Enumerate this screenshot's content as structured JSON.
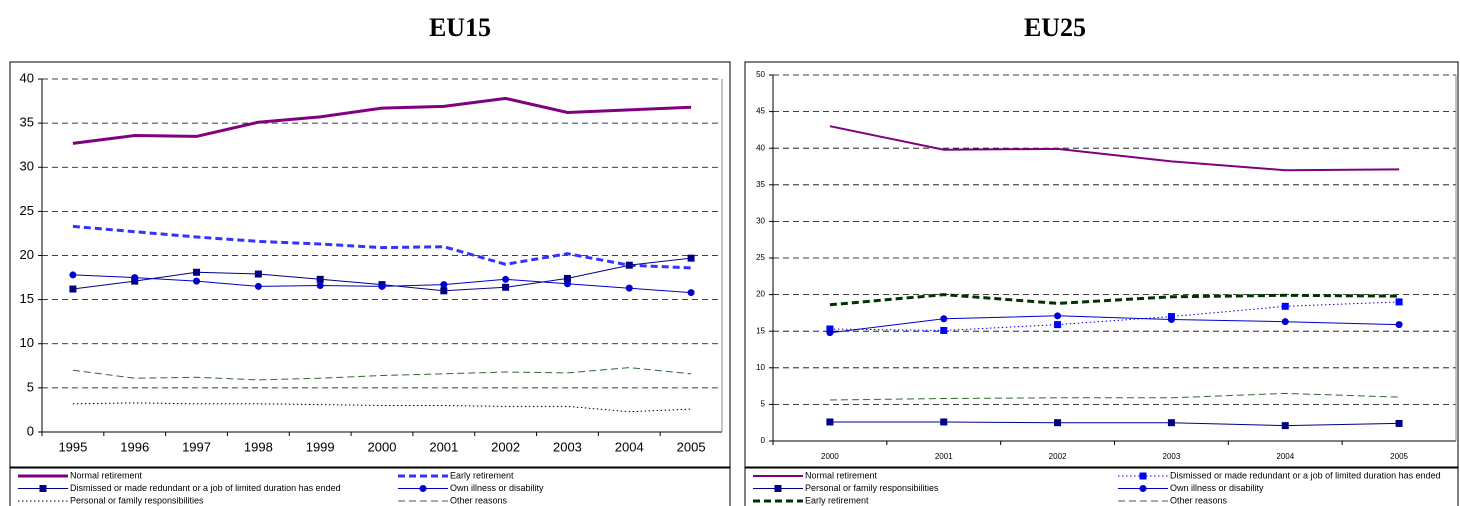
{
  "chart_data": [
    {
      "type": "line",
      "title": "EU15",
      "categories": [
        "1995",
        "1996",
        "1997",
        "1998",
        "1999",
        "2000",
        "2001",
        "2002",
        "2003",
        "2004",
        "2005"
      ],
      "ylim": [
        0,
        40
      ],
      "yticks": [
        0,
        5,
        10,
        15,
        20,
        25,
        30,
        35,
        40
      ],
      "grid": true,
      "series": [
        {
          "name": "Normal retirement",
          "color": "#800080",
          "dash": "solid",
          "line_width": 3,
          "marker": "none",
          "values": [
            32.7,
            33.6,
            33.5,
            35.1,
            35.7,
            36.7,
            36.9,
            37.8,
            36.2,
            36.5,
            36.8
          ]
        },
        {
          "name": "Early retirement",
          "color": "#3333ff",
          "dash": "dash",
          "line_width": 3,
          "marker": "none",
          "values": [
            23.3,
            22.7,
            22.1,
            21.6,
            21.3,
            20.9,
            21.0,
            19.0,
            20.2,
            18.9,
            18.6
          ]
        },
        {
          "name": "Dismissed or made redundant or a job of limited duration has ended",
          "color": "#000080",
          "dash": "solid",
          "line_width": 1,
          "marker": "square",
          "values": [
            16.2,
            17.1,
            18.1,
            17.9,
            17.3,
            16.7,
            16.0,
            16.4,
            17.4,
            18.9,
            19.7
          ]
        },
        {
          "name": "Own illness or disability",
          "color": "#0000cc",
          "dash": "solid",
          "line_width": 1,
          "marker": "circle",
          "values": [
            17.8,
            17.5,
            17.1,
            16.5,
            16.6,
            16.5,
            16.7,
            17.3,
            16.8,
            16.3,
            15.8
          ]
        },
        {
          "name": "Personal or family responsibilities",
          "color": "#000000",
          "dash": "dot",
          "line_width": 1,
          "marker": "none",
          "values": [
            3.2,
            3.3,
            3.2,
            3.2,
            3.1,
            3.0,
            3.0,
            2.9,
            2.9,
            2.3,
            2.6
          ]
        },
        {
          "name": "Other reasons",
          "color": "#336633",
          "dash": "dash",
          "line_width": 1,
          "marker": "none",
          "values": [
            7.0,
            6.1,
            6.2,
            5.9,
            6.1,
            6.4,
            6.6,
            6.8,
            6.7,
            7.3,
            6.6
          ]
        }
      ]
    },
    {
      "type": "line",
      "title": "EU25",
      "categories": [
        "2000",
        "2001",
        "2002",
        "2003",
        "2004",
        "2005"
      ],
      "ylim": [
        0,
        50
      ],
      "yticks": [
        0,
        5,
        10,
        15,
        20,
        25,
        30,
        35,
        40,
        45,
        50
      ],
      "grid": true,
      "series": [
        {
          "name": "Normal retirement",
          "color": "#800080",
          "dash": "solid",
          "line_width": 2,
          "marker": "none",
          "values": [
            43.0,
            39.8,
            39.9,
            38.2,
            37.0,
            37.1
          ]
        },
        {
          "name": "Dismissed or made redundant or a job of limited duration has ended",
          "color": "#0000ff",
          "dash": "dot",
          "line_width": 1,
          "marker": "square",
          "values": [
            15.3,
            15.1,
            15.9,
            17.0,
            18.4,
            19.0
          ]
        },
        {
          "name": "Personal or family responsibilities",
          "color": "#000080",
          "dash": "solid",
          "line_width": 1,
          "marker": "square",
          "values": [
            2.6,
            2.6,
            2.5,
            2.5,
            2.1,
            2.4
          ]
        },
        {
          "name": "Own illness or disability",
          "color": "#0000cc",
          "dash": "solid",
          "line_width": 1,
          "marker": "circle",
          "values": [
            14.8,
            16.7,
            17.1,
            16.6,
            16.3,
            15.9
          ]
        },
        {
          "name": "Early retirement",
          "color": "#003300",
          "dash": "dash",
          "line_width": 3,
          "marker": "none",
          "values": [
            18.6,
            20.0,
            18.8,
            19.7,
            19.9,
            19.8
          ]
        },
        {
          "name": "Other reasons",
          "color": "#336633",
          "dash": "dash",
          "line_width": 1,
          "marker": "none",
          "values": [
            5.6,
            5.8,
            5.9,
            5.9,
            6.5,
            6.0
          ]
        }
      ]
    }
  ]
}
